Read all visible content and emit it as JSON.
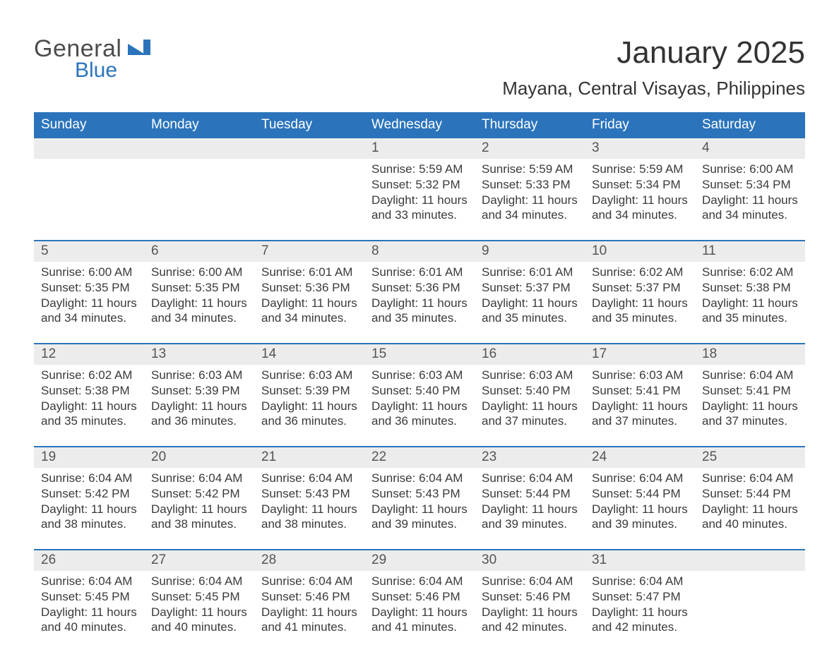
{
  "logo": {
    "word1": "General",
    "word2": "Blue"
  },
  "colors": {
    "accent": "#2b74bb",
    "header_bg": "#2b74bb",
    "header_text": "#ffffff",
    "daynum_bg": "#ececec",
    "text": "#3a3a3a",
    "page_bg": "#ffffff"
  },
  "typography": {
    "month_title_fontsize": 44,
    "location_fontsize": 26,
    "day_header_fontsize": 19,
    "daynum_fontsize": 19,
    "body_fontsize": 17
  },
  "header": {
    "month_title": "January 2025",
    "location": "Mayana, Central Visayas, Philippines"
  },
  "day_names": [
    "Sunday",
    "Monday",
    "Tuesday",
    "Wednesday",
    "Thursday",
    "Friday",
    "Saturday"
  ],
  "labels": {
    "sunrise": "Sunrise: ",
    "sunset": "Sunset: ",
    "daylight": "Daylight: "
  },
  "weeks": [
    [
      null,
      null,
      null,
      {
        "n": "1",
        "rise": "5:59 AM",
        "set": "5:32 PM",
        "dl1": "11 hours",
        "dl2": "and 33 minutes."
      },
      {
        "n": "2",
        "rise": "5:59 AM",
        "set": "5:33 PM",
        "dl1": "11 hours",
        "dl2": "and 34 minutes."
      },
      {
        "n": "3",
        "rise": "5:59 AM",
        "set": "5:34 PM",
        "dl1": "11 hours",
        "dl2": "and 34 minutes."
      },
      {
        "n": "4",
        "rise": "6:00 AM",
        "set": "5:34 PM",
        "dl1": "11 hours",
        "dl2": "and 34 minutes."
      }
    ],
    [
      {
        "n": "5",
        "rise": "6:00 AM",
        "set": "5:35 PM",
        "dl1": "11 hours",
        "dl2": "and 34 minutes."
      },
      {
        "n": "6",
        "rise": "6:00 AM",
        "set": "5:35 PM",
        "dl1": "11 hours",
        "dl2": "and 34 minutes."
      },
      {
        "n": "7",
        "rise": "6:01 AM",
        "set": "5:36 PM",
        "dl1": "11 hours",
        "dl2": "and 34 minutes."
      },
      {
        "n": "8",
        "rise": "6:01 AM",
        "set": "5:36 PM",
        "dl1": "11 hours",
        "dl2": "and 35 minutes."
      },
      {
        "n": "9",
        "rise": "6:01 AM",
        "set": "5:37 PM",
        "dl1": "11 hours",
        "dl2": "and 35 minutes."
      },
      {
        "n": "10",
        "rise": "6:02 AM",
        "set": "5:37 PM",
        "dl1": "11 hours",
        "dl2": "and 35 minutes."
      },
      {
        "n": "11",
        "rise": "6:02 AM",
        "set": "5:38 PM",
        "dl1": "11 hours",
        "dl2": "and 35 minutes."
      }
    ],
    [
      {
        "n": "12",
        "rise": "6:02 AM",
        "set": "5:38 PM",
        "dl1": "11 hours",
        "dl2": "and 35 minutes."
      },
      {
        "n": "13",
        "rise": "6:03 AM",
        "set": "5:39 PM",
        "dl1": "11 hours",
        "dl2": "and 36 minutes."
      },
      {
        "n": "14",
        "rise": "6:03 AM",
        "set": "5:39 PM",
        "dl1": "11 hours",
        "dl2": "and 36 minutes."
      },
      {
        "n": "15",
        "rise": "6:03 AM",
        "set": "5:40 PM",
        "dl1": "11 hours",
        "dl2": "and 36 minutes."
      },
      {
        "n": "16",
        "rise": "6:03 AM",
        "set": "5:40 PM",
        "dl1": "11 hours",
        "dl2": "and 37 minutes."
      },
      {
        "n": "17",
        "rise": "6:03 AM",
        "set": "5:41 PM",
        "dl1": "11 hours",
        "dl2": "and 37 minutes."
      },
      {
        "n": "18",
        "rise": "6:04 AM",
        "set": "5:41 PM",
        "dl1": "11 hours",
        "dl2": "and 37 minutes."
      }
    ],
    [
      {
        "n": "19",
        "rise": "6:04 AM",
        "set": "5:42 PM",
        "dl1": "11 hours",
        "dl2": "and 38 minutes."
      },
      {
        "n": "20",
        "rise": "6:04 AM",
        "set": "5:42 PM",
        "dl1": "11 hours",
        "dl2": "and 38 minutes."
      },
      {
        "n": "21",
        "rise": "6:04 AM",
        "set": "5:43 PM",
        "dl1": "11 hours",
        "dl2": "and 38 minutes."
      },
      {
        "n": "22",
        "rise": "6:04 AM",
        "set": "5:43 PM",
        "dl1": "11 hours",
        "dl2": "and 39 minutes."
      },
      {
        "n": "23",
        "rise": "6:04 AM",
        "set": "5:44 PM",
        "dl1": "11 hours",
        "dl2": "and 39 minutes."
      },
      {
        "n": "24",
        "rise": "6:04 AM",
        "set": "5:44 PM",
        "dl1": "11 hours",
        "dl2": "and 39 minutes."
      },
      {
        "n": "25",
        "rise": "6:04 AM",
        "set": "5:44 PM",
        "dl1": "11 hours",
        "dl2": "and 40 minutes."
      }
    ],
    [
      {
        "n": "26",
        "rise": "6:04 AM",
        "set": "5:45 PM",
        "dl1": "11 hours",
        "dl2": "and 40 minutes."
      },
      {
        "n": "27",
        "rise": "6:04 AM",
        "set": "5:45 PM",
        "dl1": "11 hours",
        "dl2": "and 40 minutes."
      },
      {
        "n": "28",
        "rise": "6:04 AM",
        "set": "5:46 PM",
        "dl1": "11 hours",
        "dl2": "and 41 minutes."
      },
      {
        "n": "29",
        "rise": "6:04 AM",
        "set": "5:46 PM",
        "dl1": "11 hours",
        "dl2": "and 41 minutes."
      },
      {
        "n": "30",
        "rise": "6:04 AM",
        "set": "5:46 PM",
        "dl1": "11 hours",
        "dl2": "and 42 minutes."
      },
      {
        "n": "31",
        "rise": "6:04 AM",
        "set": "5:47 PM",
        "dl1": "11 hours",
        "dl2": "and 42 minutes."
      },
      null
    ]
  ]
}
